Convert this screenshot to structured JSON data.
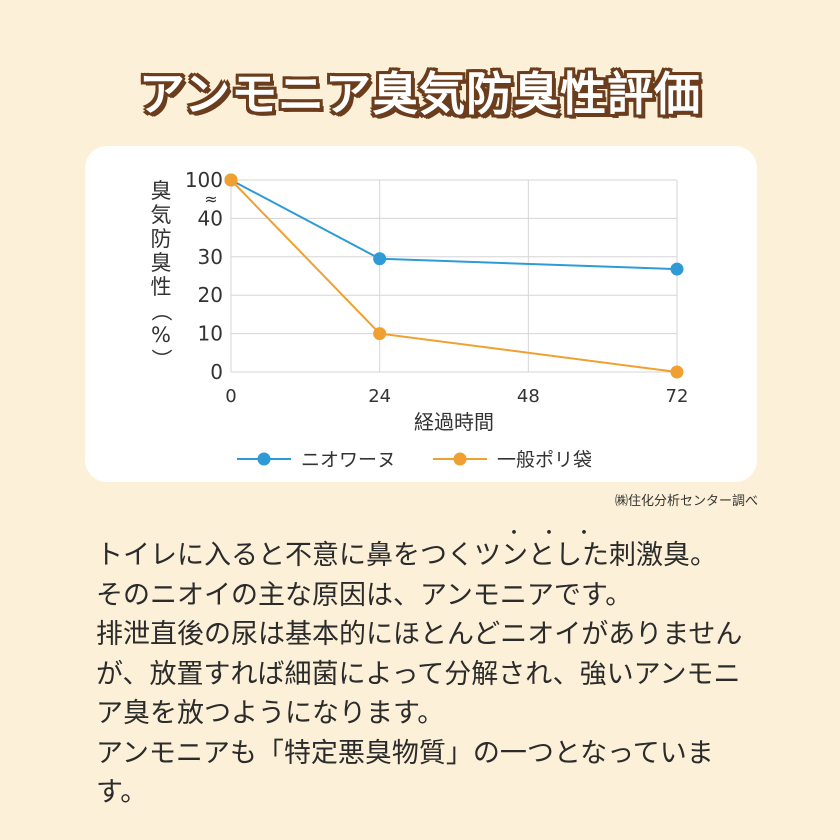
{
  "title": "アンモニア臭気防臭性評価",
  "source_note": "㈱住化分析センター調べ",
  "chart_data": {
    "type": "line",
    "title": "",
    "xlabel": "経過時間",
    "ylabel": "臭気防臭性（%）",
    "x_ticks": [
      0,
      24,
      48,
      72
    ],
    "y_ticks": [
      "0",
      "10",
      "20",
      "30",
      "40",
      "100"
    ],
    "y_break_symbol": "≈",
    "grid": true,
    "legend_position": "bottom",
    "series": [
      {
        "name": "ニオワーヌ",
        "color": "#2f9bd6",
        "x": [
          0,
          24,
          72
        ],
        "y": [
          100,
          29.5,
          26.8
        ]
      },
      {
        "name": "一般ポリ袋",
        "color": "#f0a030",
        "x": [
          0,
          24,
          72
        ],
        "y": [
          100,
          10,
          0
        ]
      }
    ]
  },
  "emphasis_dots": "・・・",
  "body": {
    "paragraphs": [
      "トイレに入ると不意に鼻をつくツンとした刺激臭。",
      "そのニオイの主な原因は、アンモニアです。",
      "排泄直後の尿は基本的にほとんどニオイがありません が、放置すれば細菌によって分解され、強いアンモニア臭を放つようになります。",
      "アンモニアも「特定悪臭物質」の一つとなっています。"
    ]
  }
}
